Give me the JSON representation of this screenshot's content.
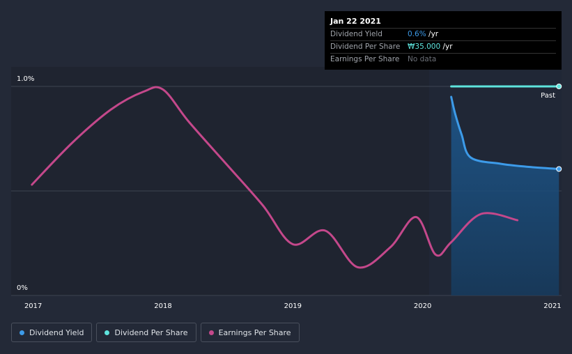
{
  "chart_data": {
    "type": "line",
    "x_ticks": [
      "2017",
      "2018",
      "2019",
      "2020",
      "2021"
    ],
    "y_ticks": [
      "1.0%",
      "0%"
    ],
    "ylim": [
      0,
      1.0
    ],
    "xlim": [
      2016.83,
      2021.07
    ],
    "forecast_start": 2020.05,
    "past_label": "Past",
    "series": [
      {
        "name": "Dividend Yield",
        "color": "#3d9be9",
        "unit": "%",
        "points": [
          [
            2020.22,
            0.95
          ],
          [
            2020.25,
            0.87
          ],
          [
            2020.3,
            0.77
          ],
          [
            2020.37,
            0.66
          ],
          [
            2020.6,
            0.63
          ],
          [
            2020.8,
            0.616
          ],
          [
            2021.05,
            0.605
          ]
        ]
      },
      {
        "name": "Dividend Per Share",
        "color": "#5ee4dd",
        "unit": "₩",
        "points": [
          [
            2020.22,
            1.0
          ],
          [
            2021.05,
            1.0
          ]
        ]
      },
      {
        "name": "Earnings Per Share",
        "color": "#c4488b",
        "unit": "",
        "points": [
          [
            2016.99,
            0.53
          ],
          [
            2017.3,
            0.73
          ],
          [
            2017.6,
            0.89
          ],
          [
            2017.85,
            0.975
          ],
          [
            2018.0,
            0.985
          ],
          [
            2018.2,
            0.83
          ],
          [
            2018.5,
            0.62
          ],
          [
            2018.77,
            0.43
          ],
          [
            2019.0,
            0.245
          ],
          [
            2019.25,
            0.31
          ],
          [
            2019.5,
            0.135
          ],
          [
            2019.75,
            0.23
          ],
          [
            2019.95,
            0.375
          ],
          [
            2020.1,
            0.195
          ],
          [
            2020.22,
            0.255
          ],
          [
            2020.45,
            0.39
          ],
          [
            2020.73,
            0.36
          ]
        ]
      }
    ]
  },
  "tooltip": {
    "date": "Jan 22 2021",
    "rows": [
      {
        "name": "Dividend Yield",
        "value": "0.6%",
        "suffix": " /yr"
      },
      {
        "name": "Dividend Per Share",
        "value": "₩35.000",
        "suffix": " /yr"
      },
      {
        "name": "Earnings Per Share",
        "value": "No data",
        "suffix": ""
      }
    ]
  },
  "legend": {
    "items": [
      {
        "label": "Dividend Yield",
        "color": "#3d9be9"
      },
      {
        "label": "Dividend Per Share",
        "color": "#5ee4dd"
      },
      {
        "label": "Earnings Per Share",
        "color": "#c4488b"
      }
    ]
  }
}
